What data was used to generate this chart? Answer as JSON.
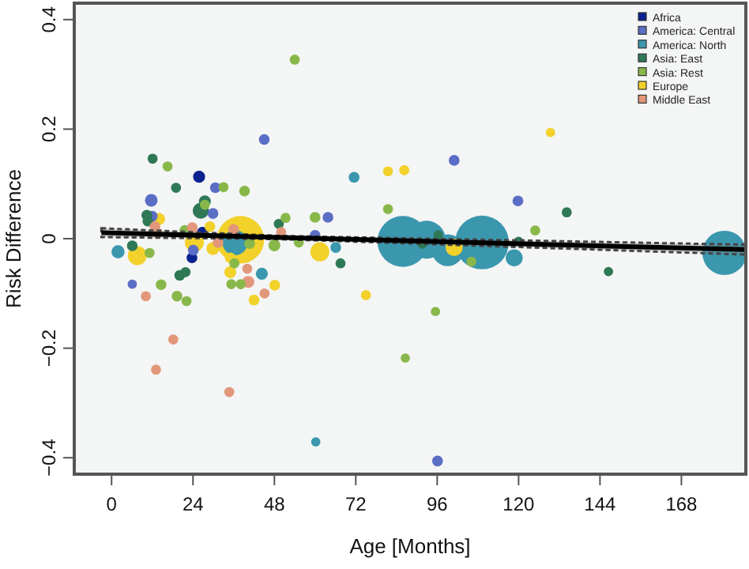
{
  "chart_data": {
    "type": "bubble",
    "xlabel": "Age [Months]",
    "ylabel": "Risk Difference",
    "xlim": [
      -11,
      187
    ],
    "ylim": [
      -0.43,
      0.43
    ],
    "xticks": [
      0,
      24,
      48,
      72,
      96,
      120,
      144,
      168
    ],
    "yticks": [
      {
        "value": -0.4,
        "label": "−0.4"
      },
      {
        "value": -0.2,
        "label": "−0.2"
      },
      0,
      0.2,
      0.4
    ],
    "legend": "top right",
    "grid": false,
    "series": [
      {
        "name": "Africa",
        "color": "#0b2290",
        "x": [
          25.8,
          26.8,
          23.7
        ],
        "values": [
          0.113,
          0.012,
          -0.035
        ],
        "sizes": [
          0.05,
          0.04,
          0.04
        ]
      },
      {
        "name": "America: Central",
        "color": "#5b6ec6",
        "x": [
          45,
          30.6,
          11.7,
          29.9,
          12,
          24.1,
          60,
          63.8,
          6.1,
          101,
          119.8,
          96.1
        ],
        "values": [
          0.181,
          0.093,
          0.07,
          0.046,
          0.041,
          -0.021,
          0.006,
          0.039,
          -0.083,
          0.143,
          0.069,
          -0.406
        ],
        "sizes": [
          0.04,
          0.04,
          0.055,
          0.04,
          0.04,
          0.04,
          0.04,
          0.04,
          0.03,
          0.04,
          0.04,
          0.04
        ]
      },
      {
        "name": "America: North",
        "color": "#3a97ae",
        "x": [
          36.4,
          1.9,
          66.1,
          44.3,
          60.2,
          71.5,
          85.9,
          92.9,
          99.1,
          109.2,
          118.7,
          180.7
        ],
        "values": [
          -0.007,
          -0.024,
          -0.016,
          -0.064,
          -0.371,
          0.112,
          -0.005,
          -0.002,
          -0.021,
          -0.007,
          -0.035,
          -0.026
        ],
        "sizes": [
          0.22,
          0.06,
          0.04,
          0.05,
          0.03,
          0.04,
          0.9,
          0.5,
          0.35,
          1,
          0.1,
          0.68
        ]
      },
      {
        "name": "Asia: East",
        "color": "#2e7856",
        "x": [
          12.1,
          19,
          27.5,
          26.3,
          10.4,
          10.7,
          49.3,
          6.1,
          67.5,
          21.8,
          20.1,
          146.5,
          134.2,
          91.6,
          96.3,
          120
        ],
        "values": [
          0.146,
          0.093,
          0.068,
          0.051,
          0.043,
          0.032,
          0.027,
          -0.013,
          -0.045,
          -0.061,
          -0.067,
          -0.06,
          0.048,
          -0.01,
          0.007,
          -0.005
        ],
        "sizes": [
          0.035,
          0.035,
          0.05,
          0.09,
          0.04,
          0.04,
          0.035,
          0.04,
          0.035,
          0.035,
          0.04,
          0.03,
          0.035,
          0.03,
          0.03,
          0.03
        ]
      },
      {
        "name": "Asia: Rest",
        "color": "#88b84a",
        "x": [
          54,
          16.5,
          33,
          39.2,
          27.5,
          51.3,
          60,
          81.5,
          21.6,
          40.7,
          11.2,
          48,
          55.2,
          36.2,
          35.3,
          38.1,
          14.6,
          19.3,
          22.1,
          86.6,
          95.5,
          124.9,
          106.1
        ],
        "values": [
          0.327,
          0.132,
          0.094,
          0.087,
          0.062,
          0.038,
          0.039,
          0.054,
          0.015,
          -0.009,
          -0.026,
          -0.012,
          -0.007,
          -0.045,
          -0.083,
          -0.083,
          -0.084,
          -0.105,
          -0.114,
          -0.218,
          -0.133,
          0.015,
          -0.042
        ],
        "sizes": [
          0.035,
          0.035,
          0.035,
          0.04,
          0.035,
          0.035,
          0.04,
          0.035,
          0.04,
          0.04,
          0.035,
          0.05,
          0.035,
          0.035,
          0.035,
          0.035,
          0.04,
          0.04,
          0.035,
          0.03,
          0.03,
          0.035,
          0.035
        ]
      },
      {
        "name": "Europe",
        "color": "#f2d12b",
        "x": [
          38,
          81.5,
          86.3,
          14,
          24.4,
          29,
          29.9,
          7.6,
          61.4,
          35,
          35,
          48.1,
          42,
          75,
          129.4,
          101
        ],
        "values": [
          -0.002,
          0.123,
          0.125,
          0.036,
          -0.007,
          0.022,
          -0.018,
          -0.031,
          -0.024,
          -0.035,
          -0.061,
          -0.085,
          -0.112,
          -0.103,
          0.194,
          -0.016
        ],
        "sizes": [
          0.78,
          0.035,
          0.035,
          0.05,
          0.125,
          0.04,
          0.06,
          0.125,
          0.125,
          0.04,
          0.05,
          0.04,
          0.04,
          0.035,
          0.03,
          0.1
        ]
      },
      {
        "name": "Middle East",
        "color": "#e2977b",
        "x": [
          12.8,
          13.5,
          23.8,
          31.4,
          36,
          50,
          40,
          40.3,
          10.1,
          45.1,
          18.2,
          13.1,
          34.7
        ],
        "values": [
          0.022,
          0.01,
          0.02,
          -0.007,
          0.017,
          0.012,
          -0.055,
          -0.079,
          -0.105,
          -0.1,
          -0.184,
          -0.239,
          -0.28
        ],
        "sizes": [
          0.04,
          0.04,
          0.04,
          0.04,
          0.04,
          0.035,
          0.035,
          0.05,
          0.035,
          0.035,
          0.035,
          0.035,
          0.035
        ]
      },
      {
        "type": "line",
        "color": "#000000",
        "line_style": "solid",
        "x": [
          -3,
          50,
          187
        ],
        "values": [
          0.011,
          0.002,
          -0.02
        ],
        "lower": [
          0.003,
          -0.001,
          -0.029
        ],
        "upper": [
          0.019,
          0.005,
          -0.011
        ]
      }
    ]
  }
}
